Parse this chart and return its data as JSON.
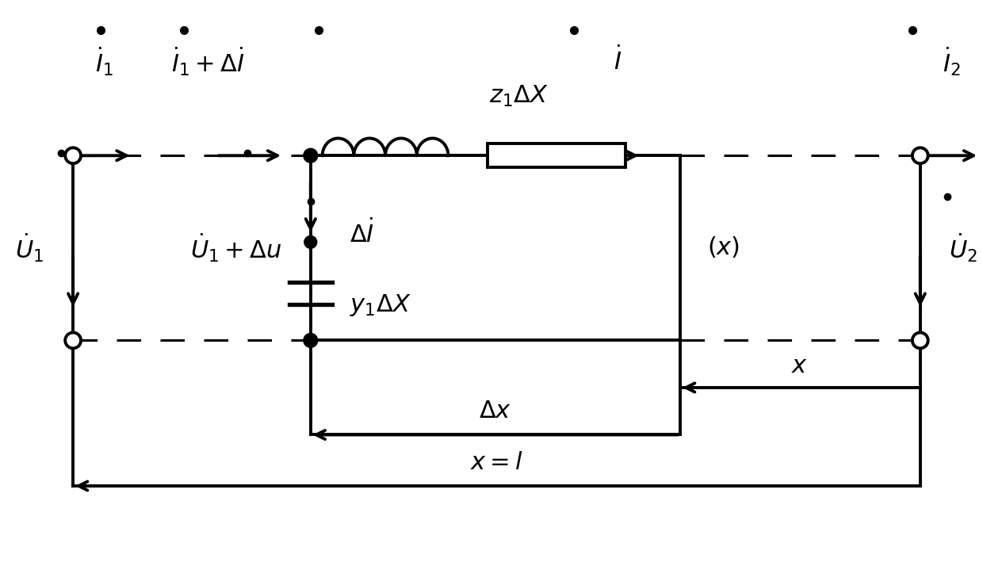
{
  "fig_width": 12.4,
  "fig_height": 7.14,
  "dpi": 100,
  "bg_color": "#ffffff",
  "line_color": "#000000",
  "line_width": 2.8,
  "dashed_lw": 2.2,
  "labels": {
    "I1": "$\\dot{I}_1$",
    "I1_delta": "$\\dot{I}_1+\\Delta\\dot{I}$",
    "z1_delta": "$z_1\\Delta X$",
    "I": "$\\dot{I}$",
    "I2": "$\\dot{I}_2$",
    "delta_I": "$\\Delta\\dot{I}$",
    "y1_delta": "$y_1\\Delta X$",
    "U1": "$\\dot{U}_1$",
    "U1_delta": "$\\dot{U}_1+\\Delta u$",
    "x_label": "$(x)$",
    "U2": "$\\dot{U}_2$",
    "delta_x": "$\\Delta x$",
    "x_eq_l": "$x=l$",
    "x_small": "$x$"
  }
}
